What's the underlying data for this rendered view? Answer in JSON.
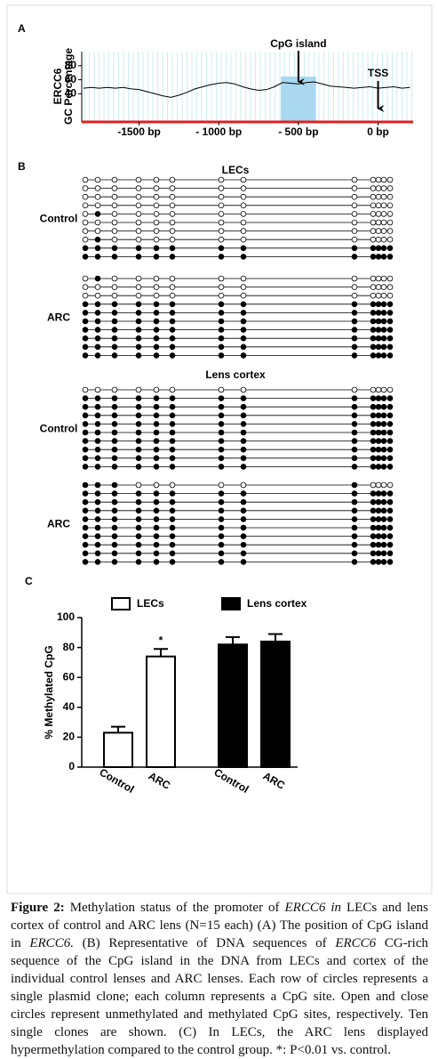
{
  "panel_a": {
    "label": "A",
    "ylabel_top": "ERCC6",
    "ylabel": "GC Percentage",
    "xlim": [
      -1860,
      220
    ],
    "ylim": [
      0,
      100
    ],
    "yticks": [
      40,
      60,
      80
    ],
    "xticks": [
      {
        "value": -1500,
        "label": "-1500 bp"
      },
      {
        "value": -1000,
        "label": "- 1000 bp"
      },
      {
        "value": -500,
        "label": "- 500 bp"
      },
      {
        "value": 0,
        "label": "0 bp"
      }
    ],
    "cpg_island_label": "CpG island",
    "tss_label": "TSS",
    "cpg_island_range": [
      -610,
      -390
    ],
    "gc_x": [
      -1850,
      -1800,
      -1750,
      -1700,
      -1650,
      -1600,
      -1550,
      -1500,
      -1450,
      -1400,
      -1350,
      -1300,
      -1250,
      -1200,
      -1150,
      -1100,
      -1050,
      -1000,
      -950,
      -900,
      -850,
      -800,
      -750,
      -700,
      -650,
      -600,
      -550,
      -500,
      -450,
      -400,
      -350,
      -300,
      -250,
      -200,
      -150,
      -100,
      -50,
      0,
      50,
      100,
      150,
      200
    ],
    "gc_values": [
      48,
      49,
      48,
      49,
      48,
      49,
      47,
      46,
      43,
      40,
      37,
      35,
      38,
      42,
      47,
      50,
      53,
      55,
      56,
      54,
      50,
      47,
      45,
      46,
      50,
      56,
      55,
      54,
      56,
      57,
      54,
      51,
      50,
      49,
      48,
      49,
      50,
      48,
      49,
      50,
      48,
      49
    ]
  },
  "panel_b": {
    "label": "B",
    "sections": [
      {
        "title": "LECs",
        "groups": [
          {
            "label": "Control",
            "rows": [
              [
                0,
                0,
                0,
                0,
                0,
                0,
                0,
                0,
                0,
                0,
                0,
                0,
                0
              ],
              [
                0,
                0,
                0,
                0,
                0,
                0,
                0,
                0,
                0,
                0,
                0,
                0,
                0
              ],
              [
                0,
                0,
                0,
                0,
                0,
                0,
                0,
                0,
                0,
                0,
                0,
                0,
                0
              ],
              [
                0,
                0,
                0,
                0,
                0,
                0,
                0,
                0,
                0,
                0,
                0,
                0,
                0
              ],
              [
                0,
                1,
                0,
                0,
                0,
                0,
                0,
                0,
                0,
                0,
                0,
                0,
                0
              ],
              [
                0,
                0,
                0,
                0,
                0,
                0,
                0,
                0,
                0,
                0,
                0,
                0,
                0
              ],
              [
                0,
                0,
                0,
                0,
                0,
                0,
                0,
                0,
                0,
                0,
                0,
                0,
                0
              ],
              [
                0,
                1,
                0,
                0,
                0,
                0,
                0,
                0,
                0,
                0,
                0,
                0,
                0
              ],
              [
                1,
                1,
                1,
                1,
                1,
                1,
                1,
                1,
                1,
                1,
                1,
                1,
                1
              ],
              [
                1,
                1,
                1,
                1,
                1,
                1,
                1,
                1,
                1,
                1,
                1,
                1,
                1
              ]
            ]
          },
          {
            "label": "ARC",
            "rows": [
              [
                0,
                1,
                0,
                0,
                0,
                0,
                0,
                0,
                0,
                0,
                0,
                0,
                0
              ],
              [
                0,
                0,
                0,
                0,
                0,
                0,
                0,
                0,
                0,
                0,
                0,
                0,
                0
              ],
              [
                0,
                0,
                0,
                0,
                0,
                0,
                0,
                0,
                0,
                0,
                0,
                0,
                0
              ],
              [
                1,
                1,
                1,
                1,
                1,
                1,
                1,
                1,
                1,
                1,
                1,
                1,
                1
              ],
              [
                1,
                1,
                1,
                1,
                1,
                1,
                1,
                1,
                1,
                1,
                1,
                1,
                1
              ],
              [
                1,
                1,
                1,
                1,
                1,
                1,
                1,
                1,
                1,
                1,
                1,
                1,
                1
              ],
              [
                1,
                1,
                1,
                1,
                1,
                1,
                1,
                1,
                1,
                1,
                1,
                1,
                1
              ],
              [
                1,
                1,
                1,
                1,
                1,
                1,
                1,
                1,
                1,
                1,
                1,
                1,
                1
              ],
              [
                1,
                1,
                1,
                1,
                1,
                1,
                1,
                1,
                1,
                1,
                1,
                1,
                1
              ],
              [
                1,
                1,
                1,
                1,
                1,
                1,
                1,
                1,
                1,
                1,
                1,
                1,
                1
              ]
            ]
          }
        ]
      },
      {
        "title": "Lens cortex",
        "groups": [
          {
            "label": "Control",
            "rows": [
              [
                0,
                0,
                0,
                0,
                0,
                0,
                0,
                0,
                0,
                0,
                0,
                0,
                0
              ],
              [
                1,
                1,
                1,
                1,
                1,
                1,
                1,
                1,
                1,
                1,
                1,
                1,
                1
              ],
              [
                1,
                1,
                1,
                1,
                1,
                1,
                1,
                1,
                1,
                1,
                1,
                1,
                1
              ],
              [
                1,
                1,
                1,
                1,
                1,
                1,
                1,
                1,
                1,
                1,
                1,
                1,
                1
              ],
              [
                1,
                1,
                1,
                1,
                1,
                1,
                1,
                1,
                1,
                1,
                1,
                1,
                1
              ],
              [
                1,
                1,
                1,
                1,
                1,
                1,
                1,
                1,
                1,
                1,
                1,
                1,
                1
              ],
              [
                1,
                1,
                1,
                1,
                1,
                1,
                1,
                1,
                1,
                1,
                1,
                1,
                1
              ],
              [
                1,
                1,
                1,
                1,
                1,
                1,
                1,
                1,
                1,
                1,
                1,
                1,
                1
              ],
              [
                1,
                1,
                1,
                1,
                1,
                1,
                1,
                1,
                1,
                1,
                1,
                1,
                1
              ],
              [
                1,
                1,
                1,
                1,
                1,
                1,
                1,
                1,
                1,
                1,
                1,
                1,
                1
              ]
            ]
          },
          {
            "label": "ARC",
            "rows": [
              [
                1,
                1,
                1,
                0,
                0,
                0,
                0,
                0,
                1,
                0,
                0,
                0,
                0
              ],
              [
                1,
                1,
                1,
                1,
                1,
                1,
                1,
                1,
                1,
                1,
                1,
                1,
                1
              ],
              [
                1,
                1,
                1,
                1,
                1,
                1,
                1,
                1,
                1,
                1,
                1,
                1,
                1
              ],
              [
                1,
                1,
                1,
                1,
                1,
                1,
                1,
                1,
                1,
                1,
                1,
                1,
                1
              ],
              [
                1,
                1,
                1,
                1,
                1,
                1,
                1,
                1,
                1,
                1,
                1,
                1,
                1
              ],
              [
                1,
                1,
                1,
                1,
                1,
                1,
                1,
                1,
                1,
                1,
                1,
                1,
                1
              ],
              [
                1,
                1,
                1,
                1,
                1,
                1,
                1,
                1,
                1,
                1,
                1,
                1,
                1
              ],
              [
                1,
                1,
                1,
                1,
                1,
                1,
                1,
                1,
                1,
                1,
                1,
                1,
                1
              ],
              [
                1,
                1,
                1,
                1,
                1,
                1,
                1,
                1,
                1,
                1,
                1,
                1,
                1
              ],
              [
                1,
                1,
                1,
                1,
                1,
                1,
                1,
                1,
                1,
                1,
                1,
                1,
                1
              ]
            ]
          }
        ]
      }
    ]
  },
  "chart_data": {
    "type": "bar",
    "panel_label": "C",
    "ylabel": "% Methylated CpG",
    "categories": [
      "Control",
      "ARC",
      "Control",
      "ARC"
    ],
    "series": [
      {
        "name": "LECs",
        "color": "#ffffff",
        "values": [
          23,
          74,
          null,
          null
        ],
        "errors": [
          4,
          5,
          null,
          null
        ]
      },
      {
        "name": "Lens cortex",
        "color": "#000000",
        "values": [
          null,
          null,
          82,
          84
        ],
        "errors": [
          null,
          null,
          5,
          5
        ]
      }
    ],
    "annotation": "*",
    "ylim": [
      0,
      100
    ],
    "yticks": [
      0,
      20,
      40,
      60,
      80,
      100
    ]
  },
  "caption": {
    "label": "Figure 2:",
    "segments": [
      " Methylation status of the promoter of ",
      "ERCC6 in",
      " LECs and lens cortex of control and ARC lens (N=15 each) (A) The position of CpG island in ",
      "ERCC6.",
      " (B) Representative of DNA sequences of ",
      "ERCC6",
      " CG-rich sequence of the CpG island in the DNA from LECs and cortex of the individual control lenses and ARC lenses. Each row of circles represents a single plasmid clone; each column represents a CpG site. Open and close circles represent unmethylated and methylated CpG sites, respectively. Ten single clones are shown. (C) In LECs, the ARC lens displayed hypermethylation compared to the control group. *: P&lt;0.01 vs. control."
    ]
  }
}
